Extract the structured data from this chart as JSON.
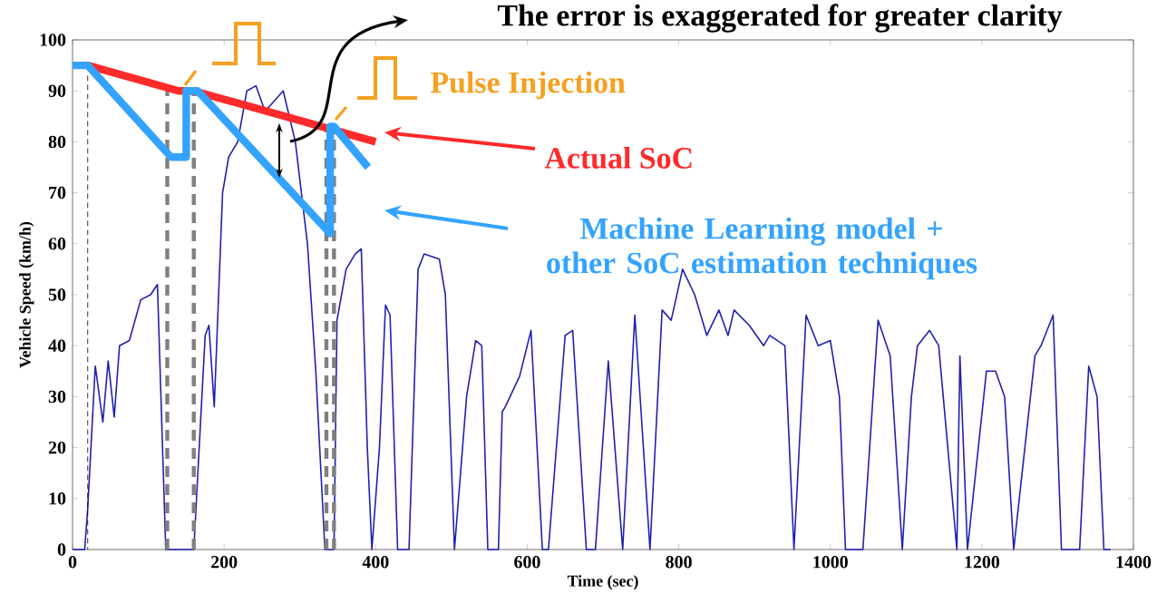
{
  "chart_data": {
    "type": "line",
    "xlabel": "Time (sec)",
    "ylabel": "Vehicle Speed (km/h)",
    "xlim": [
      0,
      1400
    ],
    "ylim": [
      0,
      100
    ],
    "xticks": [
      0,
      200,
      400,
      600,
      800,
      1000,
      1200,
      1400
    ],
    "yticks": [
      0,
      10,
      20,
      30,
      40,
      50,
      60,
      70,
      80,
      90,
      100
    ],
    "grid": false,
    "marker": "none",
    "legend": "top right",
    "annotations": [
      "The error is exaggerated for greater clarity",
      "Pulse Injection"
    ],
    "series": [
      {
        "color": "#2020b0",
        "x": [
          0,
          16,
          20,
          30,
          40,
          47,
          55,
          62,
          75,
          90,
          103,
          112,
          123,
          160,
          175,
          180,
          187,
          198,
          206,
          218,
          230,
          242,
          254,
          266,
          278,
          294,
          310,
          321,
          333,
          345,
          349,
          361,
          373,
          381,
          389,
          395,
          405,
          413,
          419,
          429,
          444,
          456,
          464,
          484,
          492,
          504,
          520,
          532,
          540,
          548,
          562,
          567,
          571,
          590,
          605,
          620,
          628,
          650,
          660,
          678,
          690,
          707,
          726,
          742,
          762,
          778,
          790,
          805,
          821,
          837,
          853,
          865,
          873,
          893,
          912,
          920,
          940,
          952,
          968,
          984,
          1000,
          1012,
          1020,
          1043,
          1063,
          1079,
          1095,
          1107,
          1115,
          1131,
          1143,
          1167,
          1171,
          1181,
          1206,
          1218,
          1230,
          1242,
          1270,
          1278,
          1294,
          1305,
          1329,
          1341,
          1352,
          1361,
          1370
        ],
        "values": [
          0,
          0,
          8,
          36,
          25,
          37,
          26,
          40,
          41,
          49,
          50,
          52,
          0,
          0,
          42,
          44,
          28,
          70,
          77,
          80,
          90,
          91,
          86,
          88,
          90,
          80,
          60,
          35,
          0,
          0,
          45,
          55,
          58,
          59,
          20,
          0,
          20,
          48,
          46,
          0,
          0,
          55,
          58,
          57,
          50,
          0,
          30,
          41,
          40,
          0,
          0,
          27,
          28,
          34,
          43,
          0,
          0,
          42,
          43,
          0,
          0,
          37,
          0,
          46,
          0,
          47,
          45,
          55,
          50,
          42,
          47,
          42,
          47,
          44,
          40,
          42,
          40,
          0,
          46,
          40,
          41,
          30,
          0,
          0,
          45,
          38,
          0,
          30,
          40,
          43,
          40,
          0,
          38,
          0,
          35,
          35,
          30,
          0,
          38,
          40,
          46,
          0,
          0,
          36,
          30,
          0,
          0
        ]
      },
      {
        "color": "#808080",
        "line_style": "dashed",
        "x": [
          125,
          125
        ],
        "values": [
          0,
          90
        ]
      },
      {
        "color": "#808080",
        "line_style": "dashed",
        "x": [
          160,
          160
        ],
        "values": [
          0,
          90
        ]
      },
      {
        "color": "#808080",
        "line_style": "dashed",
        "x": [
          335,
          335
        ],
        "values": [
          0,
          83
        ]
      },
      {
        "color": "#808080",
        "line_style": "dashed",
        "x": [
          345,
          345
        ],
        "values": [
          0,
          83
        ]
      },
      {
        "color": "#000000",
        "line_style": "dashed",
        "x": [
          20,
          20
        ],
        "values": [
          93,
          0
        ]
      },
      {
        "name": "Actual SoC",
        "color": "#ff2a2a",
        "x": [
          20,
          140,
          160,
          400
        ],
        "values": [
          95,
          90,
          90,
          80
        ]
      },
      {
        "name": "Machine Learning model + other SoC estimation techniques",
        "color": "#33a3ff",
        "x": [
          0,
          20,
          130,
          150,
          150,
          165,
          340,
          340,
          345,
          390
        ],
        "values": [
          95,
          95,
          77,
          77,
          90,
          90,
          62,
          83,
          83,
          75
        ]
      }
    ]
  }
}
